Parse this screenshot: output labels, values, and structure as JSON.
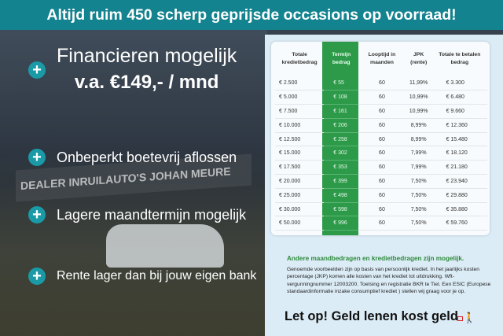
{
  "banner": "Altijd ruim 450 scherp geprijsde occasions op voorraad!",
  "bullets": [
    {
      "text": "Financieren mogelijk",
      "sub": "v.a. €149,- / mnd"
    },
    {
      "text": "Onbeperkt boetevrij aflossen"
    },
    {
      "text": "Lagere maandtermijn mogelijk"
    },
    {
      "text": "Rente lager dan bij jouw eigen bank"
    }
  ],
  "table": {
    "headers": [
      "Totale kredietbedrag",
      "Termijn bedrag",
      "Looptijd in maanden",
      "JPK (rente)",
      "Totale te betalen bedrag"
    ],
    "rows": [
      [
        "€ 2.500",
        "€ 55",
        "60",
        "11,99%",
        "€ 3.300"
      ],
      [
        "€ 5.000",
        "€ 108",
        "60",
        "10,99%",
        "€ 6.480"
      ],
      [
        "€ 7.500",
        "€ 161",
        "60",
        "10,99%",
        "€ 9.660"
      ],
      [
        "€ 10.000",
        "€ 206",
        "60",
        "8,99%",
        "€ 12.360"
      ],
      [
        "€ 12.500",
        "€ 258",
        "60",
        "8,99%",
        "€ 15.480"
      ],
      [
        "€ 15.000",
        "€ 302",
        "60",
        "7,99%",
        "€ 18.120"
      ],
      [
        "€ 17.500",
        "€ 353",
        "60",
        "7,99%",
        "€ 21.180"
      ],
      [
        "€ 20.000",
        "€ 399",
        "60",
        "7,50%",
        "€ 23.940"
      ],
      [
        "€ 25.000",
        "€ 498",
        "60",
        "7,50%",
        "€ 29.880"
      ],
      [
        "€ 30.000",
        "€ 598",
        "60",
        "7,50%",
        "€ 35.880"
      ],
      [
        "€ 50.000",
        "€ 996",
        "60",
        "7,50%",
        "€ 59.760"
      ]
    ]
  },
  "note_heading": "Andere maandbedragen en kredietbedragen zijn mogelijk.",
  "note_text": "Genoemde voorbeelden zijn op basis van persoonlijk krediet. In het jaarlijks kosten percentage (JKP) komen alle kosten van het krediet tot uitdrukking. Wft-vergunningnummer 12003200. Toetsing en registratie BKR te Tiel. Een ESIC (Europese standaardinformatie inzake consumptief krediet ) stellen wij graag voor je op.",
  "warning": "Let op! Geld lenen kost geld",
  "photo_sign_text": "DEALER INRUILAUTO'S JOHAN MEURE",
  "colors": {
    "banner": "#13838f",
    "green": "#2c9a48",
    "note_heading": "#2e8a3d"
  }
}
